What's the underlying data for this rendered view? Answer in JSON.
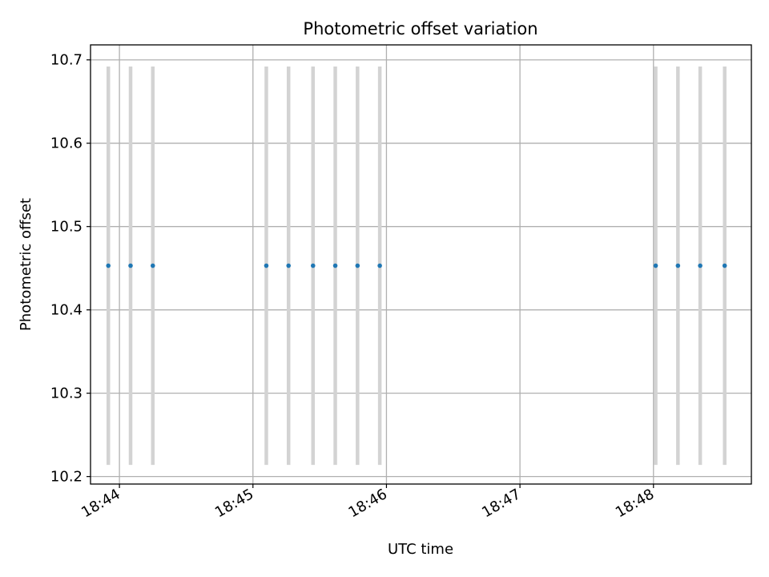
{
  "chart_data": {
    "type": "scatter",
    "title": "Photometric offset variation",
    "xlabel": "UTC time",
    "ylabel": "Photometric offset",
    "xlim": [
      "18:43:47",
      "18:48:44"
    ],
    "ylim": [
      10.191,
      10.718
    ],
    "x_ticks": [
      "18:44",
      "18:45",
      "18:46",
      "18:47",
      "18:48"
    ],
    "y_ticks": [
      10.2,
      10.3,
      10.4,
      10.5,
      10.6,
      10.7
    ],
    "grid": true,
    "x": [
      "18:43:55",
      "18:44:05",
      "18:44:15",
      "18:45:06",
      "18:45:16",
      "18:45:27",
      "18:45:37",
      "18:45:47",
      "18:45:57",
      "18:48:01",
      "18:48:11",
      "18:48:21",
      "18:48:32"
    ],
    "y": [
      10.453,
      10.453,
      10.453,
      10.453,
      10.453,
      10.453,
      10.453,
      10.453,
      10.453,
      10.453,
      10.453,
      10.453,
      10.453
    ],
    "yerr": [
      0.239,
      0.239,
      0.239,
      0.239,
      0.239,
      0.239,
      0.239,
      0.239,
      0.239,
      0.239,
      0.239,
      0.239,
      0.239
    ],
    "point_color": "#1f77b4",
    "errorbar_color": "#d3d3d3"
  }
}
